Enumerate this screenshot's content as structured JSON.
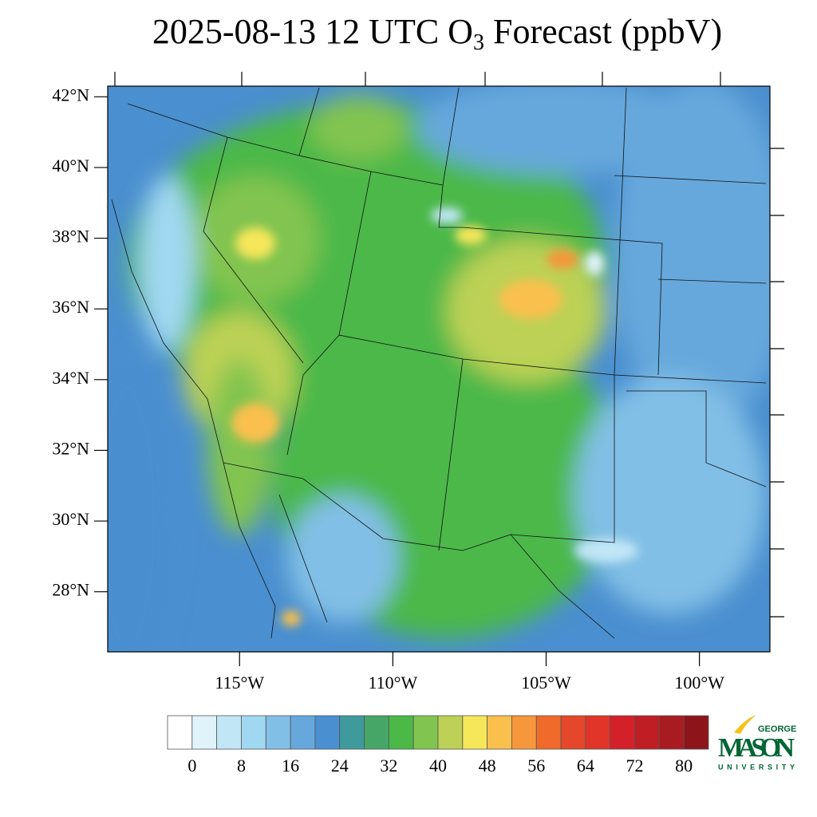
{
  "title": [
    "2025-08-13 12 UTC O",
    "3",
    " Forecast (ppbV)"
  ],
  "map": {
    "xlim": [
      -119.3,
      -97.7
    ],
    "ylim": [
      26.3,
      42.3
    ],
    "lat_ticks": [
      {
        "value": 42,
        "label": "42°N"
      },
      {
        "value": 40,
        "label": "40°N"
      },
      {
        "value": 38,
        "label": "38°N"
      },
      {
        "value": 36,
        "label": "36°N"
      },
      {
        "value": 34,
        "label": "34°N"
      },
      {
        "value": 32,
        "label": "32°N"
      },
      {
        "value": 30,
        "label": "30°N"
      },
      {
        "value": 28,
        "label": "28°N"
      }
    ],
    "lon_ticks": [
      {
        "value": -115,
        "label": "115°W"
      },
      {
        "value": -110,
        "label": "110°W"
      },
      {
        "value": -105,
        "label": "105°W"
      },
      {
        "value": -100,
        "label": "100°W"
      }
    ]
  },
  "colorbar": {
    "ticks": [
      0,
      8,
      16,
      24,
      32,
      40,
      48,
      56,
      64,
      72,
      80
    ],
    "colors": [
      "#ffffff",
      "#e0f3fb",
      "#c1e6f6",
      "#a0d8f2",
      "#82bfe6",
      "#66a8dc",
      "#4a8fcf",
      "#3f9a9c",
      "#45a667",
      "#4bb848",
      "#82c450",
      "#bcd155",
      "#f6e65a",
      "#f9c04e",
      "#f6973b",
      "#f06a2b",
      "#e4472a",
      "#e03528",
      "#d42129",
      "#bf1e24",
      "#a81b20",
      "#8d1519"
    ]
  },
  "logo": {
    "top": "GEORGE",
    "name": "MASON",
    "bottom": "UNIVERSITY"
  }
}
